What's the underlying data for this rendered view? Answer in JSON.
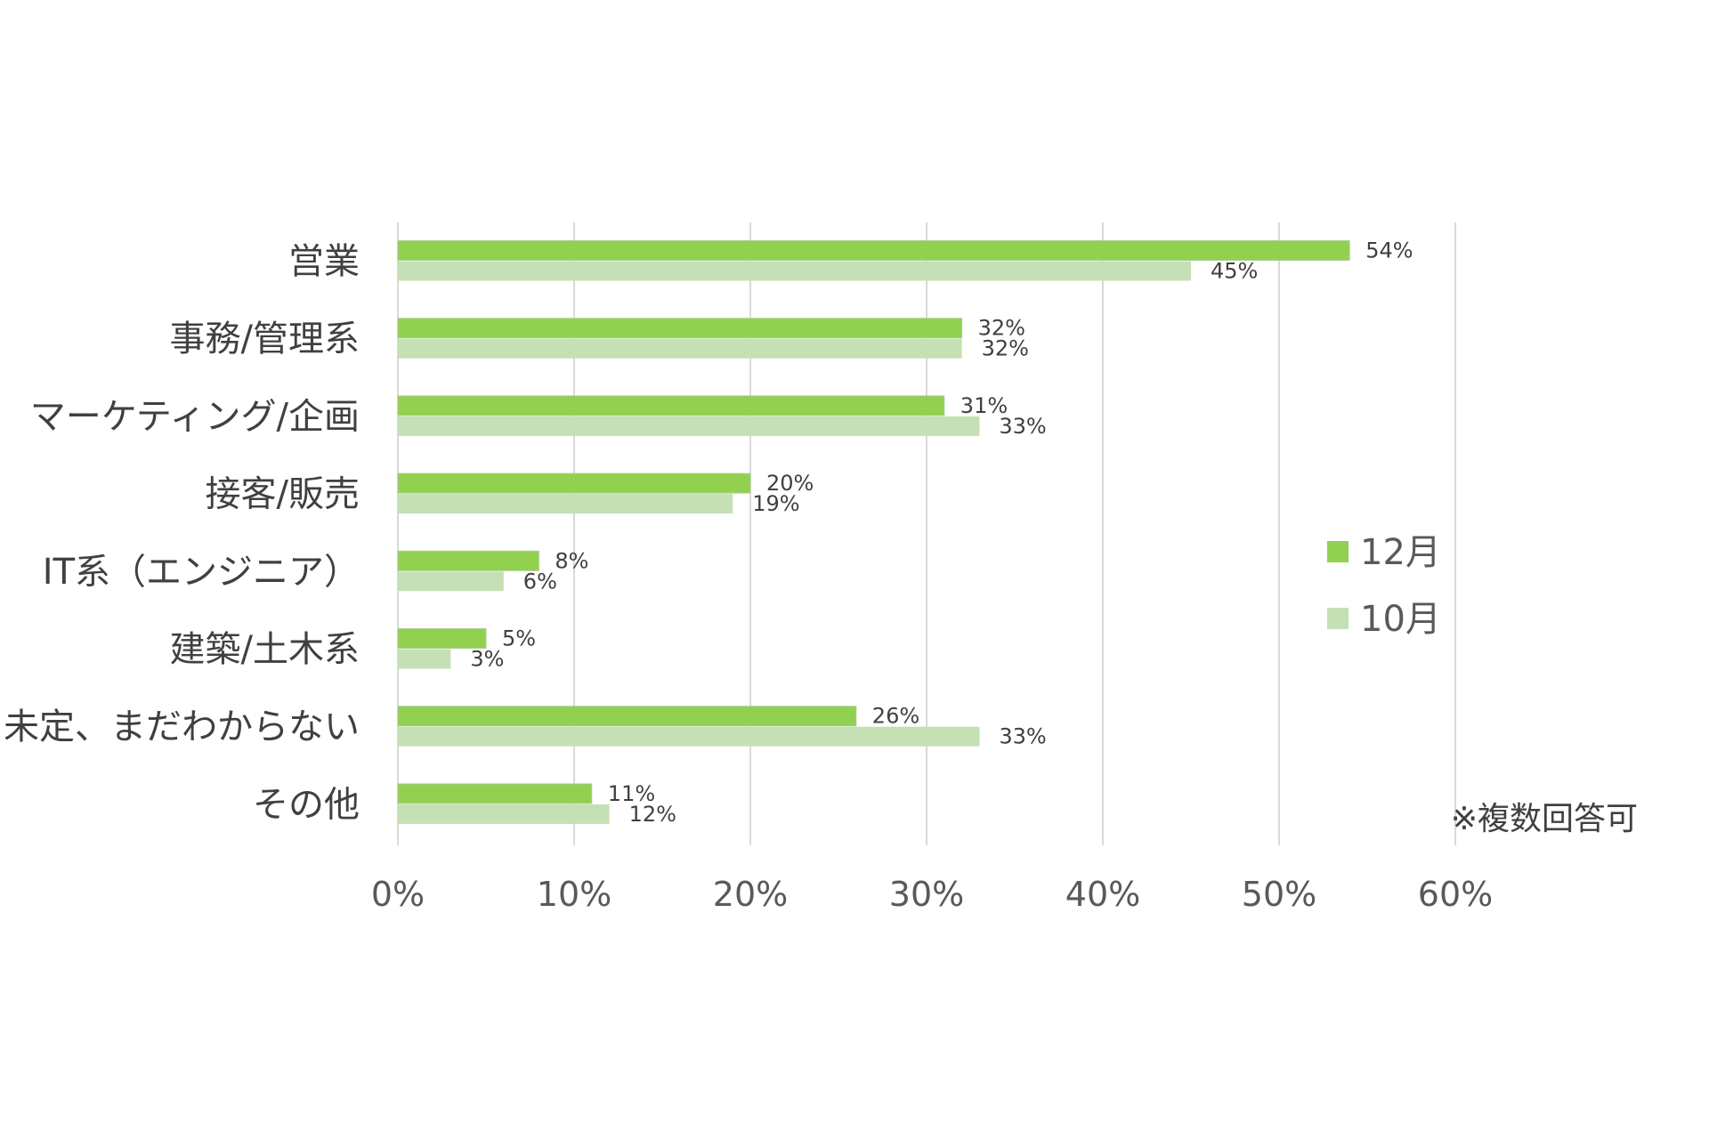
{
  "chart_data": {
    "type": "bar",
    "orientation": "horizontal",
    "categories": [
      "営業",
      "事務/管理系",
      "マーケティング/企画",
      "接客/販売",
      "IT系（エンジニア）",
      "建築/土木系",
      "未定、まだわからない",
      "その他"
    ],
    "series": [
      {
        "name": "12月",
        "color": "#92d050",
        "values": [
          54,
          32,
          31,
          20,
          8,
          5,
          26,
          11
        ],
        "labels": [
          "54%",
          "32%",
          "31%",
          "20%",
          "8%",
          "5%",
          "26%",
          "11%"
        ]
      },
      {
        "name": "10月",
        "color": "#c5e0b4",
        "values": [
          45,
          32,
          33,
          19,
          6,
          3,
          33,
          12
        ],
        "labels": [
          "45%",
          "32%",
          "33%",
          "19%",
          "6%",
          "3%",
          "33%",
          "12%"
        ]
      }
    ],
    "xlim": [
      0,
      60
    ],
    "xticks": [
      "0%",
      "10%",
      "20%",
      "30%",
      "40%",
      "50%",
      "60%"
    ],
    "grid": true,
    "legend_position": "right",
    "note": "※複数回答可"
  }
}
